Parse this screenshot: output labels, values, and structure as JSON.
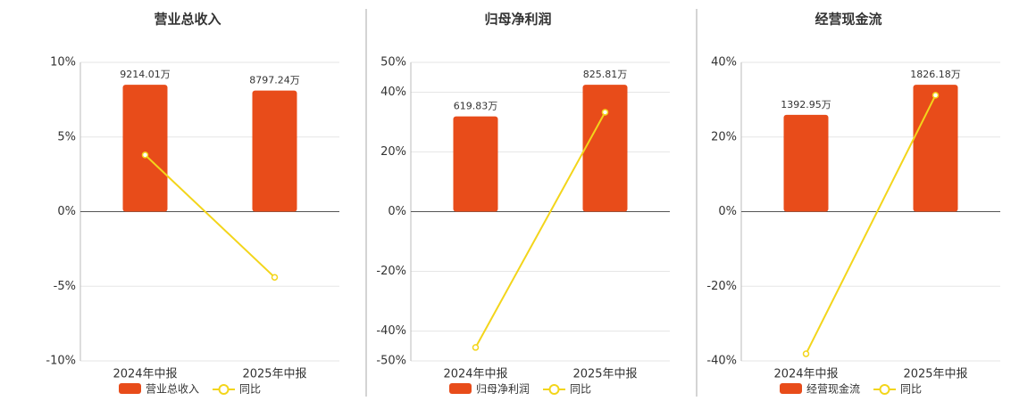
{
  "chart_data": [
    {
      "type": "combo",
      "title": "营业总收入",
      "categories": [
        "2024年中报",
        "2025年中报"
      ],
      "series": [
        {
          "name": "营业总收入",
          "type": "bar",
          "color": "#e84c1a",
          "values": [
            9214.01,
            8797.24
          ],
          "value_labels": [
            "9214.01万",
            "8797.24万"
          ]
        },
        {
          "name": "同比",
          "type": "line",
          "color": "#f3d51b",
          "values": [
            3.8,
            -4.4
          ]
        }
      ],
      "ylim": [
        -10,
        10
      ],
      "yticks": [
        {
          "value": -10,
          "label": "-10%"
        },
        {
          "value": -5,
          "label": "-5%"
        },
        {
          "value": 0,
          "label": "0%"
        },
        {
          "value": 5,
          "label": "5%"
        },
        {
          "value": 10,
          "label": "10%"
        }
      ],
      "grid": true
    },
    {
      "type": "combo",
      "title": "归母净利润",
      "categories": [
        "2024年中报",
        "2025年中报"
      ],
      "series": [
        {
          "name": "归母净利润",
          "type": "bar",
          "color": "#e84c1a",
          "values": [
            619.83,
            825.81
          ],
          "value_labels": [
            "619.83万",
            "825.81万"
          ]
        },
        {
          "name": "同比",
          "type": "line",
          "color": "#f3d51b",
          "values": [
            -45.5,
            33.3
          ]
        }
      ],
      "ylim": [
        -50,
        50
      ],
      "yticks": [
        {
          "value": -50,
          "label": "-50%"
        },
        {
          "value": -40,
          "label": "-40%"
        },
        {
          "value": -20,
          "label": "-20%"
        },
        {
          "value": 0,
          "label": "0%"
        },
        {
          "value": 20,
          "label": "20%"
        },
        {
          "value": 40,
          "label": "40%"
        },
        {
          "value": 50,
          "label": "50%"
        }
      ],
      "grid": true
    },
    {
      "type": "combo",
      "title": "经营现金流",
      "categories": [
        "2024年中报",
        "2025年中报"
      ],
      "series": [
        {
          "name": "经营现金流",
          "type": "bar",
          "color": "#e84c1a",
          "values": [
            1392.95,
            1826.18
          ],
          "value_labels": [
            "1392.95万",
            "1826.18万"
          ]
        },
        {
          "name": "同比",
          "type": "line",
          "color": "#f3d51b",
          "values": [
            -38.1,
            31.2
          ]
        }
      ],
      "ylim": [
        -40,
        40
      ],
      "yticks": [
        {
          "value": -40,
          "label": "-40%"
        },
        {
          "value": -20,
          "label": "-20%"
        },
        {
          "value": 0,
          "label": "0%"
        },
        {
          "value": 20,
          "label": "20%"
        },
        {
          "value": 40,
          "label": "40%"
        }
      ],
      "grid": true
    }
  ]
}
